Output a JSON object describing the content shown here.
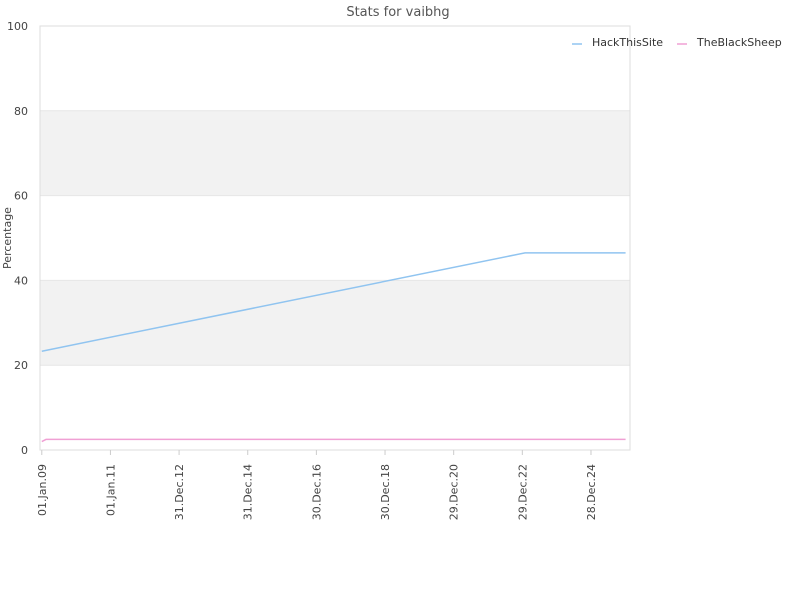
{
  "chart_data": {
    "type": "line",
    "title": "Stats for vaibhg",
    "xlabel": "",
    "ylabel": "Percentage",
    "ylim": [
      0,
      100
    ],
    "yticks": [
      0,
      20,
      40,
      60,
      80,
      100
    ],
    "xlim": [
      "2008-12-13",
      "2026-02-16"
    ],
    "xticks": [
      "01.Jan.09",
      "01.Jan.11",
      "31.Dec.12",
      "31.Dec.14",
      "30.Dec.16",
      "30.Dec.18",
      "29.Dec.20",
      "29.Dec.22",
      "28.Dec.24"
    ],
    "xtick_dates": [
      "2009-01-01",
      "2011-01-01",
      "2012-12-31",
      "2014-12-31",
      "2016-12-30",
      "2018-12-30",
      "2020-12-29",
      "2022-12-29",
      "2024-12-28"
    ],
    "grid": true,
    "banded_background": true,
    "legend_position": "top-right",
    "series": [
      {
        "name": "HackThisSite",
        "color": "#90c4f0",
        "points": [
          {
            "x": "2009-01-01",
            "y": 23.3
          },
          {
            "x": "2023-01-27",
            "y": 46.5
          },
          {
            "x": "2025-12-31",
            "y": 46.5
          }
        ]
      },
      {
        "name": "TheBlackSheep",
        "color": "#f0a0d4",
        "points": [
          {
            "x": "2009-01-01",
            "y": 2.0
          },
          {
            "x": "2009-02-15",
            "y": 2.5
          },
          {
            "x": "2025-12-31",
            "y": 2.5
          }
        ]
      }
    ]
  }
}
